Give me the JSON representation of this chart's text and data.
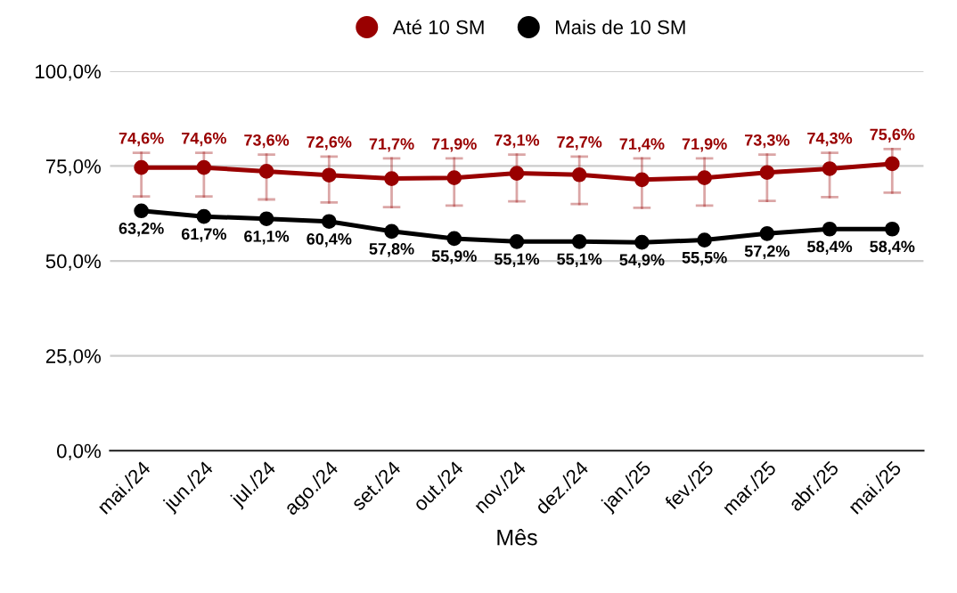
{
  "chart_data": {
    "type": "line",
    "xlabel": "Mês",
    "categories": [
      "mai./24",
      "jun./24",
      "jul./24",
      "ago./24",
      "set./24",
      "out./24",
      "nov./24",
      "dez./24",
      "jan./25",
      "fev./25",
      "mar./25",
      "abr./25",
      "mai./25"
    ],
    "series": [
      {
        "name": "Até 10 SM",
        "color": "#990000",
        "values": [
          74.6,
          74.6,
          73.6,
          72.6,
          71.7,
          71.9,
          73.1,
          72.7,
          71.4,
          71.9,
          73.3,
          74.3,
          75.6
        ],
        "value_labels": [
          "74,6%",
          "74,6%",
          "73,6%",
          "72,6%",
          "71,7%",
          "71,9%",
          "73,1%",
          "72,7%",
          "71,4%",
          "71,9%",
          "73,3%",
          "74,3%",
          "75,6%"
        ],
        "errors": [
          [
            67.0,
            78.5
          ],
          [
            67.0,
            78.5
          ],
          [
            66.2,
            78.0
          ],
          [
            65.4,
            77.5
          ],
          [
            64.2,
            77.0
          ],
          [
            64.6,
            77.0
          ],
          [
            65.7,
            78.0
          ],
          [
            65.0,
            77.5
          ],
          [
            64.0,
            77.0
          ],
          [
            64.6,
            77.0
          ],
          [
            65.8,
            78.0
          ],
          [
            66.8,
            78.5
          ],
          [
            68.0,
            79.5
          ]
        ]
      },
      {
        "name": "Mais de 10 SM",
        "color": "#000000",
        "values": [
          63.2,
          61.7,
          61.1,
          60.4,
          57.8,
          55.9,
          55.1,
          55.1,
          54.9,
          55.5,
          57.2,
          58.4,
          58.4
        ],
        "value_labels": [
          "63,2%",
          "61,7%",
          "61,1%",
          "60,4%",
          "57,8%",
          "55,9%",
          "55,1%",
          "55,1%",
          "54,9%",
          "55,5%",
          "57,2%",
          "58,4%",
          "58,4%"
        ]
      }
    ],
    "ylim": [
      0,
      100
    ],
    "yticks": [
      {
        "value": 0,
        "label": "0,0%"
      },
      {
        "value": 25,
        "label": "25,0%"
      },
      {
        "value": 50,
        "label": "50,0%"
      },
      {
        "value": 75,
        "label": "75,0%"
      },
      {
        "value": 100,
        "label": "100,0%"
      }
    ],
    "grid": "y",
    "legend": "top",
    "marker": "circle",
    "line_style": "solid"
  }
}
